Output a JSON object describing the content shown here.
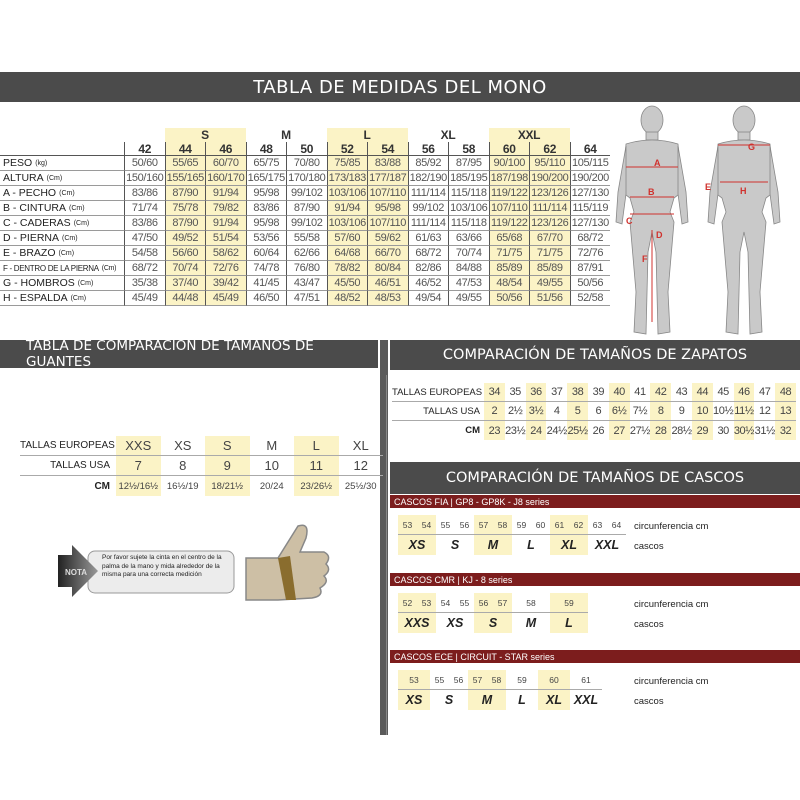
{
  "title": "TABLA DE MEDIDAS DEL MONO",
  "colors": {
    "band": "#4b4b4b",
    "highlight": "#fbf3c6",
    "helmet_bar": "#7c1d1d",
    "figure_label": "#d0312d"
  },
  "suit_table": {
    "groups": [
      {
        "label": "",
        "span": 1,
        "hl": false
      },
      {
        "label": "S",
        "span": 2,
        "hl": true
      },
      {
        "label": "M",
        "span": 2,
        "hl": false
      },
      {
        "label": "L",
        "span": 2,
        "hl": true
      },
      {
        "label": "XL",
        "span": 2,
        "hl": false
      },
      {
        "label": "XXL",
        "span": 2,
        "hl": true
      },
      {
        "label": "",
        "span": 1,
        "hl": false
      }
    ],
    "sizes": [
      "42",
      "44",
      "46",
      "48",
      "50",
      "52",
      "54",
      "56",
      "58",
      "60",
      "62",
      "64"
    ],
    "highlight_cols": [
      1,
      2,
      5,
      6,
      9,
      10
    ],
    "rows": [
      {
        "label": "PESO",
        "unit": "(kg)",
        "values": [
          "50/60",
          "55/65",
          "60/70",
          "65/75",
          "70/80",
          "75/85",
          "83/88",
          "85/92",
          "87/95",
          "90/100",
          "95/110",
          "105/115"
        ]
      },
      {
        "label": "ALTURA",
        "unit": "(Cm)",
        "values": [
          "150/160",
          "155/165",
          "160/170",
          "165/175",
          "170/180",
          "173/183",
          "177/187",
          "182/190",
          "185/195",
          "187/198",
          "190/200",
          "190/200"
        ]
      },
      {
        "label": "A - PECHO",
        "unit": "(Cm)",
        "values": [
          "83/86",
          "87/90",
          "91/94",
          "95/98",
          "99/102",
          "103/106",
          "107/110",
          "111/114",
          "115/118",
          "119/122",
          "123/126",
          "127/130"
        ]
      },
      {
        "label": "B - CINTURA",
        "unit": "(Cm)",
        "values": [
          "71/74",
          "75/78",
          "79/82",
          "83/86",
          "87/90",
          "91/94",
          "95/98",
          "99/102",
          "103/106",
          "107/110",
          "111/114",
          "115/119"
        ]
      },
      {
        "label": "C - CADERAS",
        "unit": "(Cm)",
        "values": [
          "83/86",
          "87/90",
          "91/94",
          "95/98",
          "99/102",
          "103/106",
          "107/110",
          "111/114",
          "115/118",
          "119/122",
          "123/126",
          "127/130"
        ]
      },
      {
        "label": "D - PIERNA",
        "unit": "(Cm)",
        "values": [
          "47/50",
          "49/52",
          "51/54",
          "53/56",
          "55/58",
          "57/60",
          "59/62",
          "61/63",
          "63/66",
          "65/68",
          "67/70",
          "68/72"
        ]
      },
      {
        "label": "E - BRAZO",
        "unit": "(Cm)",
        "values": [
          "54/58",
          "56/60",
          "58/62",
          "60/64",
          "62/66",
          "64/68",
          "66/70",
          "68/72",
          "70/74",
          "71/75",
          "71/75",
          "72/76"
        ]
      },
      {
        "label": "F - DENTRO DE LA PIERNA",
        "unit": "(Cm)",
        "values": [
          "68/72",
          "70/74",
          "72/76",
          "74/78",
          "76/80",
          "78/82",
          "80/84",
          "82/86",
          "84/88",
          "85/89",
          "85/89",
          "87/91"
        ]
      },
      {
        "label": "G - HOMBROS",
        "unit": "(Cm)",
        "values": [
          "35/38",
          "37/40",
          "39/42",
          "41/45",
          "43/47",
          "45/50",
          "46/51",
          "46/52",
          "47/53",
          "48/54",
          "49/55",
          "50/56"
        ]
      },
      {
        "label": "H - ESPALDA",
        "unit": "(Cm)",
        "values": [
          "45/49",
          "44/48",
          "45/49",
          "46/50",
          "47/51",
          "48/52",
          "48/53",
          "49/54",
          "49/55",
          "50/56",
          "51/56",
          "52/58"
        ]
      }
    ]
  },
  "figure": {
    "labels": [
      "A",
      "B",
      "C",
      "D",
      "E",
      "F",
      "G",
      "H"
    ]
  },
  "gloves": {
    "title": "TABLA DE COMPARACIÓN DE TAMAÑOS DE GUANTES",
    "highlight_cols": [
      0,
      2,
      4
    ],
    "rows": [
      {
        "label": "TALLAS EUROPEAS",
        "values": [
          "XXS",
          "XS",
          "S",
          "M",
          "L",
          "XL"
        ]
      },
      {
        "label": "TALLAS USA",
        "values": [
          "7",
          "8",
          "9",
          "10",
          "11",
          "12"
        ]
      },
      {
        "label": "CM",
        "values": [
          "12½/16½",
          "16½/19",
          "18/21½",
          "20/24",
          "23/26½",
          "25½/30"
        ]
      }
    ],
    "note_label": "NOTA",
    "note_text": "Por favor sujete la cinta en el centro de la palma de la mano y mida alrededor de la misma para una correcta medición"
  },
  "shoes": {
    "title": "COMPARACIÓN DE TAMAÑOS DE ZAPATOS",
    "highlight_cols": [
      0,
      2,
      4,
      6,
      8,
      10,
      12,
      14
    ],
    "rows": [
      {
        "label": "TALLAS EUROPEAS",
        "values": [
          "34",
          "35",
          "36",
          "37",
          "38",
          "39",
          "40",
          "41",
          "42",
          "43",
          "44",
          "45",
          "46",
          "47",
          "48"
        ]
      },
      {
        "label": "TALLAS USA",
        "values": [
          "2",
          "2½",
          "3½",
          "4",
          "5",
          "6",
          "6½",
          "7½",
          "8",
          "9",
          "10",
          "10½",
          "11½",
          "12",
          "13"
        ]
      },
      {
        "label": "CM",
        "values": [
          "23",
          "23½",
          "24",
          "24½",
          "25½",
          "26",
          "27",
          "27½",
          "28",
          "28½",
          "29",
          "30",
          "30½",
          "31½",
          "32"
        ]
      }
    ]
  },
  "helmets": {
    "title": "COMPARACIÓN DE TAMAÑOS DE CASCOS",
    "circ_label": "circunferencia cm",
    "size_label": "cascos",
    "tables": [
      {
        "name": "CASCOS FIA  |  GP8 - GP8K - J8 series",
        "groups": [
          {
            "circ": [
              "53",
              "54"
            ],
            "size": "XS"
          },
          {
            "circ": [
              "55",
              "56"
            ],
            "size": "S"
          },
          {
            "circ": [
              "57",
              "58"
            ],
            "size": "M"
          },
          {
            "circ": [
              "59",
              "60"
            ],
            "size": "L"
          },
          {
            "circ": [
              "61",
              "62"
            ],
            "size": "XL"
          },
          {
            "circ": [
              "63",
              "64"
            ],
            "size": "XXL"
          }
        ]
      },
      {
        "name": "CASCOS CMR  |  KJ - 8 series",
        "groups": [
          {
            "circ": [
              "52",
              "53"
            ],
            "size": "XXS"
          },
          {
            "circ": [
              "54",
              "55"
            ],
            "size": "XS"
          },
          {
            "circ": [
              "56",
              "57"
            ],
            "size": "S"
          },
          {
            "circ": [
              "58"
            ],
            "size": "M"
          },
          {
            "circ": [
              "59"
            ],
            "size": "L"
          }
        ]
      },
      {
        "name": "CASCOS ECE  |  CIRCUIT - STAR series",
        "groups": [
          {
            "circ": [
              "53"
            ],
            "size": "XS"
          },
          {
            "circ": [
              "55",
              "56"
            ],
            "size": "S"
          },
          {
            "circ": [
              "57",
              "58"
            ],
            "size": "M"
          },
          {
            "circ": [
              "59"
            ],
            "size": "L"
          },
          {
            "circ": [
              "60"
            ],
            "size": "XL"
          },
          {
            "circ": [
              "61"
            ],
            "size": "XXL"
          }
        ]
      }
    ]
  }
}
